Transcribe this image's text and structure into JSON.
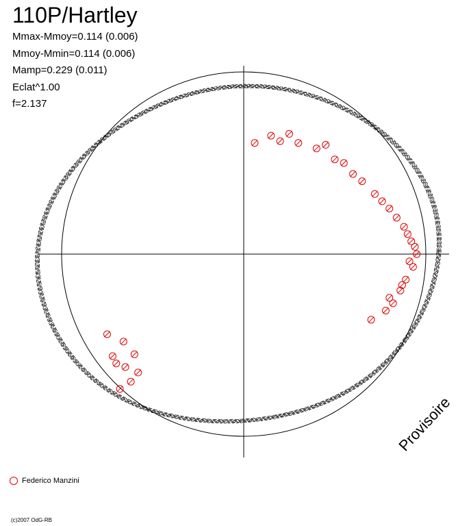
{
  "title": "110P/Hartley",
  "stats": [
    "Mmax-Mmoy=0.114 (0.006)",
    "Mmoy-Mmin=0.114 (0.006)",
    "Mamp=0.229 (0.011)",
    "Eclat^1.00",
    "f=2.137"
  ],
  "watermark": "Provisoire",
  "legend": {
    "observer": "Federico Manzini"
  },
  "copyright": "(c)2007 OdG-RB",
  "colors": {
    "points": "#e00000",
    "axes": "#000000",
    "model": "#000000"
  },
  "chart_data": {
    "type": "scatter",
    "polar": true,
    "period_ratio": 2.137,
    "amplitude": 0.229,
    "reference_circle": true,
    "grid": false,
    "series": [
      {
        "name": "Federico Manzini",
        "marker": "open-circle",
        "points": [
          [
            0.06,
            0.61
          ],
          [
            0.2,
            0.62
          ],
          [
            0.3,
            0.61
          ],
          [
            0.4,
            0.58
          ],
          [
            0.5,
            0.52
          ],
          [
            0.6,
            0.44
          ],
          [
            0.72,
            0.33
          ],
          [
            0.8,
            0.25
          ],
          [
            0.88,
            0.15
          ],
          [
            0.92,
            0.07
          ],
          [
            0.95,
            0.0
          ],
          [
            0.93,
            -0.07
          ],
          [
            0.89,
            -0.14
          ],
          [
            0.86,
            -0.2
          ],
          [
            0.82,
            -0.27
          ],
          [
            0.78,
            -0.31
          ],
          [
            0.7,
            -0.36
          ],
          [
            -0.72,
            -0.56
          ],
          [
            -0.65,
            -0.62
          ],
          [
            -0.62,
            -0.7
          ],
          [
            -0.58,
            -0.65
          ],
          [
            -0.6,
            -0.55
          ],
          [
            -0.7,
            -0.6
          ],
          [
            -0.68,
            -0.74
          ],
          [
            0.15,
            0.65
          ],
          [
            0.25,
            0.66
          ],
          [
            0.45,
            0.6
          ],
          [
            0.55,
            0.5
          ],
          [
            0.65,
            0.4
          ],
          [
            0.76,
            0.29
          ],
          [
            0.84,
            0.2
          ],
          [
            0.9,
            0.11
          ],
          [
            0.94,
            0.04
          ],
          [
            0.91,
            -0.04
          ],
          [
            0.87,
            -0.17
          ],
          [
            0.8,
            -0.24
          ],
          [
            -0.75,
            -0.44
          ],
          [
            -0.66,
            -0.48
          ]
        ]
      }
    ]
  }
}
